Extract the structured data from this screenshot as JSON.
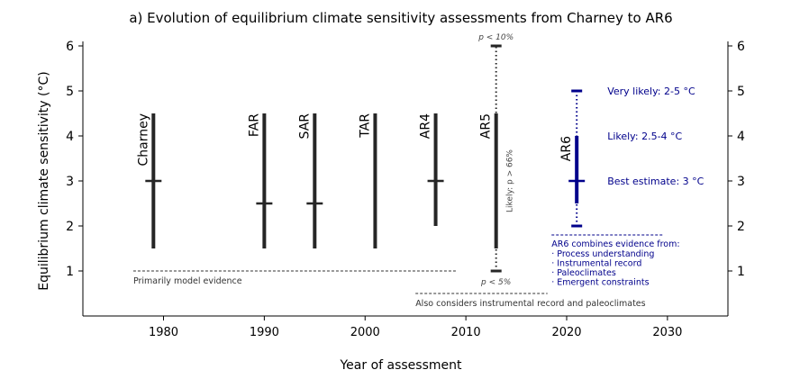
{
  "chart_data": {
    "type": "errorbar",
    "title": "a) Evolution of equilibrium climate sensitivity assessments from Charney to AR6",
    "xlabel": "Year of assessment",
    "ylabel": "Equilibrium climate sensitivity (°C)",
    "xlim": [
      1972,
      2036
    ],
    "ylim": [
      0,
      6
    ],
    "xticks": [
      1980,
      1990,
      2000,
      2010,
      2020,
      2030
    ],
    "yticks": [
      1,
      2,
      3,
      4,
      5,
      6
    ],
    "assessments": [
      {
        "name": "Charney",
        "year": 1979,
        "likely": [
          1.5,
          4.5
        ],
        "best": 3
      },
      {
        "name": "FAR",
        "year": 1990,
        "likely": [
          1.5,
          4.5
        ],
        "best": 2.5
      },
      {
        "name": "SAR",
        "year": 1995,
        "likely": [
          1.5,
          4.5
        ],
        "best": 2.5
      },
      {
        "name": "TAR",
        "year": 2001,
        "likely": [
          1.5,
          4.5
        ],
        "best": null
      },
      {
        "name": "AR4",
        "year": 2007,
        "likely": [
          2,
          4.5
        ],
        "best": 3
      },
      {
        "name": "AR5",
        "year": 2013,
        "likely": [
          1.5,
          4.5
        ],
        "best": null,
        "extremes": [
          1,
          6
        ]
      },
      {
        "name": "AR6",
        "year": 2021,
        "likely": [
          2.5,
          4
        ],
        "very_likely": [
          2,
          5
        ],
        "best": 3
      }
    ],
    "annotations": {
      "p_high": "p < 10%",
      "p_low": "p < 5%",
      "ar5_likely": "Likely: p > 66%",
      "very_likely": "Very likely: 2-5 °C",
      "likely": "Likely: 2.5-4 °C",
      "best": "Best estimate: 3 °C",
      "model_evidence": "Primarily model evidence",
      "instrumental": "Also considers instrumental record and paleoclimates",
      "ar6_header": "AR6 combines evidence from:",
      "ar6_items": [
        "· Process understanding",
        "· Instrumental record",
        "· Paleoclimates",
        "· Emergent constraints"
      ]
    },
    "colors": {
      "black": "#262626",
      "blue": "#00008b"
    }
  }
}
